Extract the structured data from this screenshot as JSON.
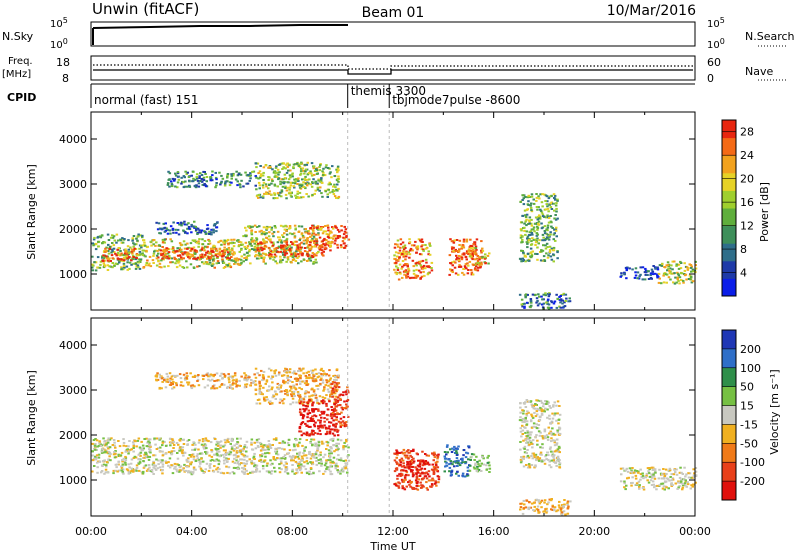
{
  "header": {
    "title": "Unwin (fitACF)",
    "beam": "Beam 01",
    "date": "10/Mar/2016"
  },
  "panels": {
    "nsky": {
      "label": "N.Sky",
      "right_label": "N.Search",
      "yticks_left": [
        "10^5",
        "10^0"
      ],
      "yticks_right": [
        "10^5",
        "10^0"
      ]
    },
    "freq": {
      "label_line1": "Freq.",
      "label_line2": "[MHz]",
      "yticks_left": [
        "18",
        "8"
      ],
      "right_label": "Nave",
      "yticks_right": [
        "60",
        "0"
      ]
    },
    "cpid": {
      "label": "CPID",
      "segments": [
        {
          "text": "normal (fast) 151",
          "start_h": 0,
          "end_h": 10.2
        },
        {
          "text": "themis 3300",
          "start_h": 10.2,
          "end_h": 11.85
        },
        {
          "text": "tbjmode7pulse -8600",
          "start_h": 11.85,
          "end_h": 24
        }
      ]
    }
  },
  "chart_data": [
    {
      "type": "heatmap",
      "name": "power",
      "xlabel": "",
      "ylabel": "Slant Range [km]",
      "xlim": [
        0,
        24
      ],
      "ylim": [
        200,
        4600
      ],
      "yticks": [
        1000,
        2000,
        3000,
        4000
      ],
      "colorbar": {
        "label": "Power [dB]",
        "ticks": [
          "4",
          "8",
          "12",
          "16",
          "20",
          "24",
          "28"
        ],
        "range": [
          0,
          30
        ],
        "colors": [
          "#0b1ee8",
          "#1e3aa8",
          "#2f6e8a",
          "#3e8f5a",
          "#5fae3c",
          "#9fcf2e",
          "#e6d226",
          "#f2a21e",
          "#f46a16",
          "#e8260f"
        ]
      },
      "regions": [
        {
          "x0": 0.0,
          "x1": 2.0,
          "y0": 1100,
          "y1": 1900,
          "level": 0.45
        },
        {
          "x0": 0.4,
          "x1": 1.8,
          "y0": 1300,
          "y1": 1600,
          "level": 0.85
        },
        {
          "x0": 2.0,
          "x1": 6.0,
          "y0": 1150,
          "y1": 1800,
          "level": 0.6
        },
        {
          "x0": 2.5,
          "x1": 5.5,
          "y0": 1350,
          "y1": 1600,
          "level": 0.95
        },
        {
          "x0": 6.0,
          "x1": 9.0,
          "y0": 1250,
          "y1": 2100,
          "level": 0.55
        },
        {
          "x0": 6.5,
          "x1": 9.5,
          "y0": 1400,
          "y1": 1750,
          "level": 0.95
        },
        {
          "x0": 8.5,
          "x1": 10.2,
          "y0": 1600,
          "y1": 2100,
          "level": 0.85
        },
        {
          "x0": 3.0,
          "x1": 6.5,
          "y0": 2950,
          "y1": 3300,
          "level": 0.3
        },
        {
          "x0": 6.5,
          "x1": 9.8,
          "y0": 2700,
          "y1": 3500,
          "level": 0.5
        },
        {
          "x0": 2.5,
          "x1": 5.0,
          "y0": 1900,
          "y1": 2200,
          "level": 0.2
        },
        {
          "x0": 12.0,
          "x1": 13.5,
          "y0": 900,
          "y1": 1800,
          "level": 0.8
        },
        {
          "x0": 14.2,
          "x1": 15.5,
          "y0": 1000,
          "y1": 1800,
          "level": 0.9
        },
        {
          "x0": 15.0,
          "x1": 15.8,
          "y0": 1200,
          "y1": 1600,
          "level": 0.7
        },
        {
          "x0": 17.0,
          "x1": 18.5,
          "y0": 1300,
          "y1": 2800,
          "level": 0.45
        },
        {
          "x0": 21.0,
          "x1": 22.5,
          "y0": 900,
          "y1": 1200,
          "level": 0.15
        },
        {
          "x0": 22.5,
          "x1": 24.0,
          "y0": 800,
          "y1": 1300,
          "level": 0.55
        },
        {
          "x0": 17.0,
          "x1": 19.0,
          "y0": 250,
          "y1": 600,
          "level": 0.3
        }
      ]
    },
    {
      "type": "heatmap",
      "name": "velocity",
      "xlabel": "Time UT",
      "ylabel": "Slant Range [km]",
      "xlim": [
        0,
        24
      ],
      "ylim": [
        200,
        4600
      ],
      "xticks": [
        "00:00",
        "04:00",
        "08:00",
        "12:00",
        "16:00",
        "20:00",
        "00:00"
      ],
      "yticks": [
        1000,
        2000,
        3000,
        4000
      ],
      "colorbar": {
        "label": "Velocity [m s⁻¹]",
        "ticks": [
          "200",
          "100",
          "50",
          "15",
          "-15",
          "-50",
          "-100",
          "-200"
        ],
        "colors": [
          "#1f37b5",
          "#2f6fc8",
          "#2f8f4a",
          "#76c043",
          "#c8c8c0",
          "#f0b020",
          "#f07a18",
          "#e8401a",
          "#e0100c"
        ]
      },
      "regions": [
        {
          "x0": 0.0,
          "x1": 10.2,
          "y0": 1150,
          "y1": 1950,
          "level": 4
        },
        {
          "x0": 2.5,
          "x1": 6.5,
          "y0": 3050,
          "y1": 3400,
          "level": 5
        },
        {
          "x0": 6.5,
          "x1": 9.8,
          "y0": 2700,
          "y1": 3500,
          "level": 5
        },
        {
          "x0": 8.2,
          "x1": 9.8,
          "y0": 2000,
          "y1": 2800,
          "level": 8
        },
        {
          "x0": 9.5,
          "x1": 10.2,
          "y0": 2200,
          "y1": 3200,
          "level": 7
        },
        {
          "x0": 12.0,
          "x1": 13.8,
          "y0": 800,
          "y1": 1700,
          "level": 7
        },
        {
          "x0": 12.2,
          "x1": 13.4,
          "y0": 1100,
          "y1": 1500,
          "level": 8
        },
        {
          "x0": 14.0,
          "x1": 15.0,
          "y0": 1100,
          "y1": 1800,
          "level": 1
        },
        {
          "x0": 15.0,
          "x1": 15.8,
          "y0": 1200,
          "y1": 1600,
          "level": 3
        },
        {
          "x0": 17.0,
          "x1": 18.6,
          "y0": 1300,
          "y1": 2800,
          "level": 4
        },
        {
          "x0": 17.0,
          "x1": 19.0,
          "y0": 250,
          "y1": 600,
          "level": 5
        },
        {
          "x0": 21.0,
          "x1": 24.0,
          "y0": 800,
          "y1": 1300,
          "level": 4
        }
      ]
    }
  ]
}
